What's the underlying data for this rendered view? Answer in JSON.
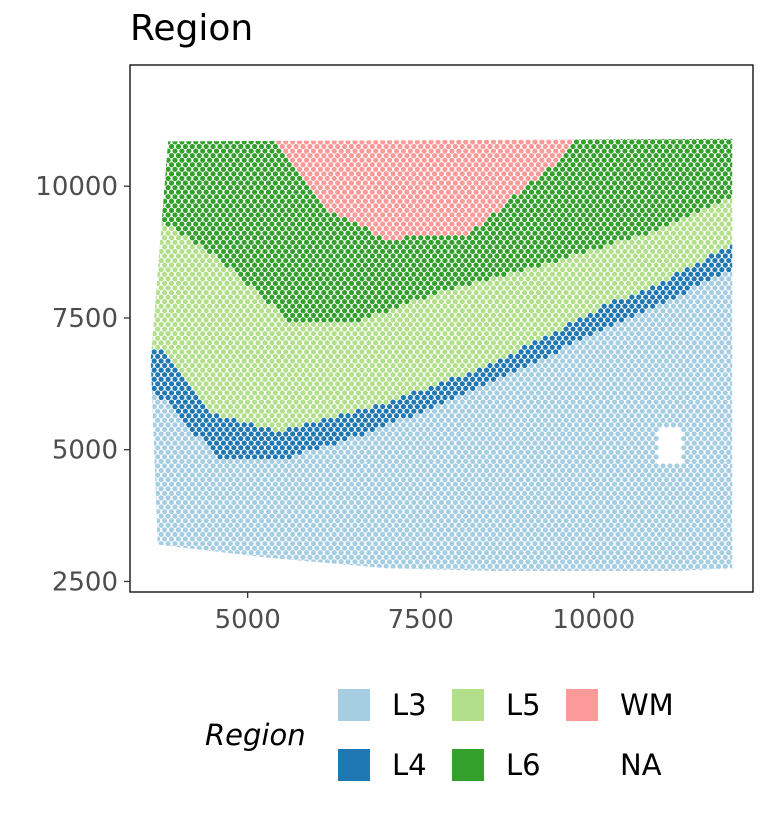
{
  "chart_data": {
    "type": "scatter",
    "title": "Region",
    "xlabel": "",
    "ylabel": "",
    "xlim": [
      3300,
      12300
    ],
    "ylim": [
      2300,
      12300
    ],
    "x_ticks": [
      5000,
      7500,
      10000
    ],
    "y_ticks": [
      2500,
      5000,
      7500,
      10000
    ],
    "grid": false,
    "legend": {
      "title": "Region",
      "placement": "bottom",
      "entries": [
        {
          "name": "L3",
          "color": "#a6cee3"
        },
        {
          "name": "L4",
          "color": "#1f78b4"
        },
        {
          "name": "L5",
          "color": "#b2df8a"
        },
        {
          "name": "L6",
          "color": "#33a02c"
        },
        {
          "name": "WM",
          "color": "#fb9a99"
        },
        {
          "name": "NA",
          "color": ""
        }
      ]
    },
    "colors": {
      "L3": "#a6cee3",
      "L4": "#1f78b4",
      "L5": "#b2df8a",
      "L6": "#33a02c",
      "WM": "#fb9a99"
    },
    "tissue_outline": [
      [
        3850,
        10850
      ],
      [
        12000,
        10900
      ],
      [
        12000,
        2750
      ],
      [
        11200,
        2700
      ],
      [
        8500,
        2700
      ],
      [
        7000,
        2750
      ],
      [
        5300,
        2950
      ],
      [
        3700,
        3200
      ],
      [
        3600,
        6700
      ]
    ],
    "region_boundaries": {
      "L6_L5": [
        [
          3800,
          9300
        ],
        [
          4600,
          8600
        ],
        [
          5600,
          7450
        ],
        [
          6600,
          7450
        ],
        [
          7800,
          8000
        ],
        [
          9500,
          8600
        ],
        [
          11000,
          9200
        ],
        [
          12000,
          9800
        ]
      ],
      "L5_L4": [
        [
          3800,
          6900
        ],
        [
          4500,
          5700
        ],
        [
          5400,
          5350
        ],
        [
          6800,
          5800
        ],
        [
          8500,
          6600
        ],
        [
          10100,
          7700
        ],
        [
          11000,
          8200
        ],
        [
          12000,
          8900
        ]
      ],
      "L4_L3": [
        [
          3600,
          6200
        ],
        [
          4600,
          4800
        ],
        [
          5600,
          4850
        ],
        [
          6800,
          5350
        ],
        [
          8400,
          6200
        ],
        [
          10000,
          7200
        ],
        [
          11000,
          7800
        ],
        [
          12000,
          8400
        ]
      ],
      "WM_L6": [
        [
          5300,
          11000
        ],
        [
          6100,
          9600
        ],
        [
          7000,
          9000
        ],
        [
          8200,
          9100
        ],
        [
          9400,
          10400
        ],
        [
          9800,
          11100
        ]
      ]
    }
  }
}
